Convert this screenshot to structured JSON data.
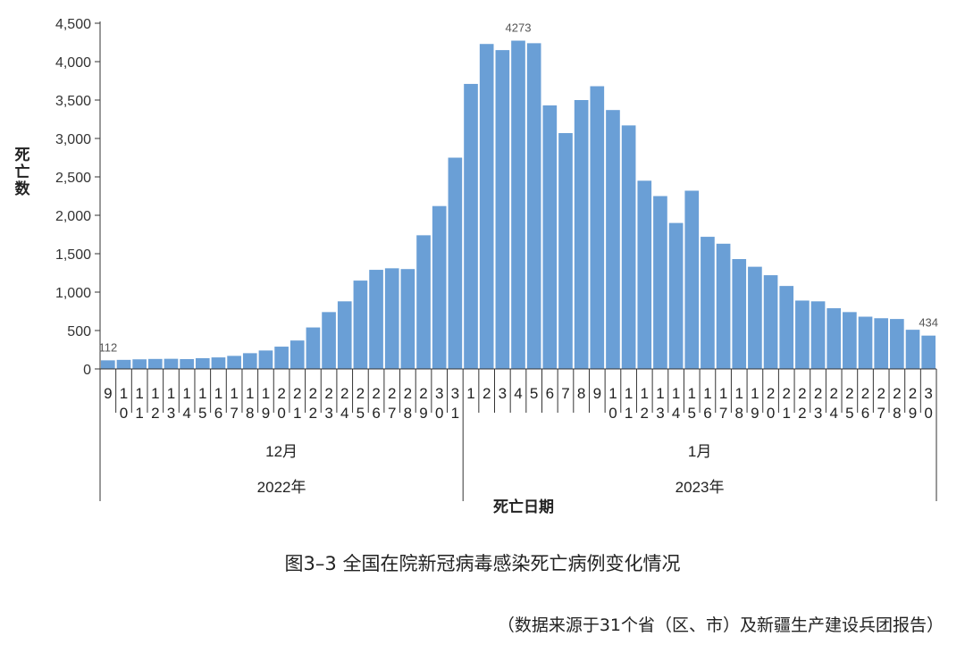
{
  "chart_data": {
    "type": "bar",
    "xlabel": "死亡日期",
    "ylabel": "死亡数",
    "yticks": [
      "0",
      "500",
      "1,000",
      "1,500",
      "2,000",
      "2,500",
      "3,000",
      "3,500",
      "4,000",
      "4,500"
    ],
    "ylim": [
      0,
      4500
    ],
    "color": "#6a9fd6",
    "days": [
      "9",
      "10",
      "11",
      "12",
      "13",
      "14",
      "15",
      "16",
      "17",
      "18",
      "19",
      "20",
      "21",
      "22",
      "23",
      "24",
      "25",
      "26",
      "27",
      "28",
      "29",
      "30",
      "31",
      "1",
      "2",
      "3",
      "4",
      "5",
      "6",
      "7",
      "8",
      "9",
      "10",
      "11",
      "12",
      "13",
      "14",
      "15",
      "16",
      "17",
      "18",
      "19",
      "20",
      "21",
      "22",
      "23",
      "24",
      "25",
      "26",
      "27",
      "28",
      "29",
      "30"
    ],
    "values": [
      112,
      118,
      125,
      130,
      132,
      128,
      140,
      150,
      170,
      205,
      240,
      290,
      370,
      540,
      740,
      880,
      1150,
      1290,
      1310,
      1300,
      1740,
      2120,
      2750,
      3710,
      4230,
      4150,
      4273,
      4240,
      3430,
      3070,
      3500,
      3680,
      3370,
      3170,
      2450,
      2250,
      1900,
      2320,
      1720,
      1630,
      1430,
      1330,
      1220,
      1080,
      890,
      880,
      790,
      740,
      680,
      660,
      650,
      510,
      434
    ],
    "data_labels": [
      {
        "index": 0,
        "text": "112"
      },
      {
        "index": 26,
        "text": "4273"
      },
      {
        "index": 52,
        "text": "434"
      }
    ],
    "months": [
      {
        "label": "12月",
        "start": 0,
        "end": 22
      },
      {
        "label": "1月",
        "start": 23,
        "end": 52
      }
    ],
    "years": [
      {
        "label": "2022年",
        "start": 0,
        "end": 22
      },
      {
        "label": "2023年",
        "start": 23,
        "end": 52
      }
    ],
    "grid": false
  },
  "caption": "图3–3 全国在院新冠病毒感染死亡病例变化情况",
  "source": "（数据来源于31个省（区、市）及新疆生产建设兵团报告）"
}
